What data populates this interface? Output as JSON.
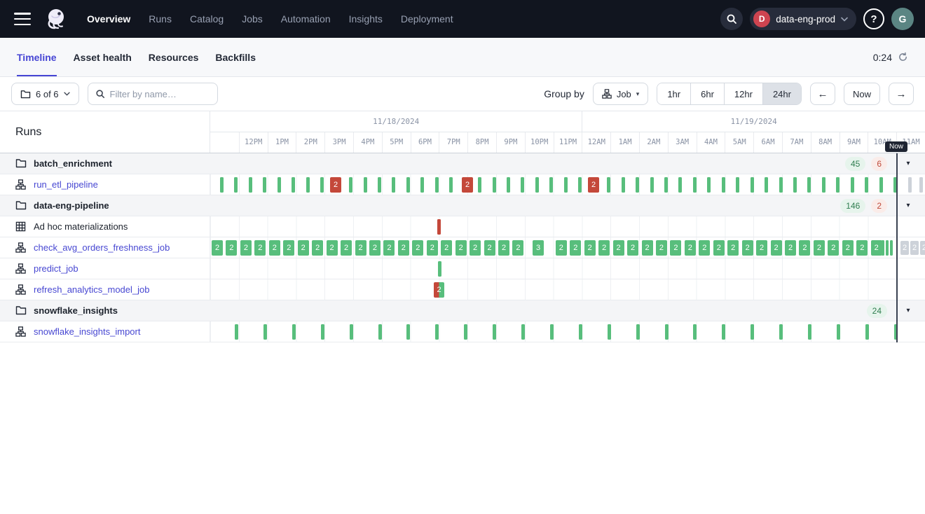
{
  "topnav": {
    "items": [
      {
        "label": "Overview",
        "active": true
      },
      {
        "label": "Runs",
        "active": false
      },
      {
        "label": "Catalog",
        "active": false
      },
      {
        "label": "Jobs",
        "active": false
      },
      {
        "label": "Automation",
        "active": false
      },
      {
        "label": "Insights",
        "active": false
      },
      {
        "label": "Deployment",
        "active": false
      }
    ],
    "deployment": {
      "initial": "D",
      "name": "data-eng-prod"
    },
    "help_label": "?",
    "avatar_initial": "G"
  },
  "tabs": {
    "items": [
      {
        "label": "Timeline",
        "active": true
      },
      {
        "label": "Asset health",
        "active": false
      },
      {
        "label": "Resources",
        "active": false
      },
      {
        "label": "Backfills",
        "active": false
      }
    ],
    "refresh_countdown": "0:24"
  },
  "toolbar": {
    "scope_button_label": "6 of 6",
    "filter_placeholder": "Filter by name…",
    "group_by_label": "Group by",
    "group_by_value": "Job",
    "range_options": [
      "1hr",
      "6hr",
      "12hr",
      "24hr"
    ],
    "range_active": "24hr",
    "prev_label": "←",
    "now_button_label": "Now",
    "next_label": "→"
  },
  "timeline": {
    "runs_title": "Runs",
    "dates": [
      {
        "label": "11/18/2024",
        "hour_span": 13
      },
      {
        "label": "11/19/2024",
        "hour_span": 12
      }
    ],
    "hours": [
      "12PM",
      "1PM",
      "2PM",
      "3PM",
      "4PM",
      "5PM",
      "6PM",
      "7PM",
      "8PM",
      "9PM",
      "10PM",
      "11PM",
      "12AM",
      "1AM",
      "2AM",
      "3AM",
      "4AM",
      "5AM",
      "6AM",
      "7AM",
      "8AM",
      "9AM",
      "10AM",
      "11AM"
    ],
    "col_width": 40.8,
    "now": {
      "label": "Now",
      "x": 979
    },
    "rows": [
      {
        "type": "group",
        "label": "batch_enrichment",
        "badges": [
          {
            "value": "45",
            "kind": "success"
          },
          {
            "value": "6",
            "kind": "failure"
          }
        ]
      },
      {
        "type": "job",
        "label": "run_etl_pipeline",
        "series": [
          {
            "mode": "repeat",
            "x0": 14,
            "dx": 20.45,
            "n": 48,
            "shape": "tick",
            "color": "success",
            "skip": [
              8,
              17,
              26
            ]
          },
          {
            "mode": "list",
            "shape": "box",
            "color": "failure",
            "label": "2",
            "xs": [
              171,
              359,
              539
            ]
          },
          {
            "mode": "list",
            "shape": "tick",
            "color": "future",
            "xs": [
              996,
              1012
            ]
          }
        ]
      },
      {
        "type": "group",
        "label": "data-eng-pipeline",
        "badges": [
          {
            "value": "146",
            "kind": "success"
          },
          {
            "value": "2",
            "kind": "failure"
          }
        ]
      },
      {
        "type": "adhoc",
        "label": "Ad hoc materializations",
        "series": [
          {
            "mode": "list",
            "shape": "tick",
            "color": "failure",
            "xs": [
              324
            ]
          }
        ]
      },
      {
        "type": "job",
        "label": "check_avg_orders_freshness_job",
        "series": [
          {
            "mode": "repeat",
            "x0": 2,
            "dx": 20.45,
            "n": 47,
            "shape": "box",
            "color": "success",
            "label": "2",
            "skip": [
              22,
              23
            ]
          },
          {
            "mode": "list",
            "shape": "box",
            "color": "success",
            "label": "3",
            "xs": [
              460
            ]
          },
          {
            "mode": "list",
            "shape": "bar",
            "color": "success",
            "xs": [
              958,
              964,
              970
            ]
          },
          {
            "mode": "list",
            "shape": "box-sm",
            "color": "future",
            "label": "2",
            "xs": [
              985,
              999,
              1013
            ]
          }
        ]
      },
      {
        "type": "job",
        "label": "predict_job",
        "series": [
          {
            "mode": "list",
            "shape": "tick",
            "color": "success",
            "xs": [
              325
            ]
          }
        ]
      },
      {
        "type": "job",
        "label": "refresh_analytics_model_job",
        "series": [
          {
            "mode": "list",
            "shape": "splitbox",
            "label": "2",
            "xs": [
              319
            ]
          }
        ]
      },
      {
        "type": "group",
        "label": "snowflake_insights",
        "badges": [
          {
            "value": "24",
            "kind": "success"
          }
        ]
      },
      {
        "type": "job",
        "label": "snowflake_insights_import",
        "series": [
          {
            "mode": "repeat",
            "x0": 35,
            "dx": 40.9,
            "n": 24,
            "shape": "tick",
            "color": "success"
          }
        ]
      }
    ]
  },
  "colors": {
    "accent": "#4645D4",
    "success_bar": "#58BE7C",
    "failure_bar": "#C4483A",
    "future_bar": "#CDD2D9",
    "nav_background": "#11151F"
  }
}
